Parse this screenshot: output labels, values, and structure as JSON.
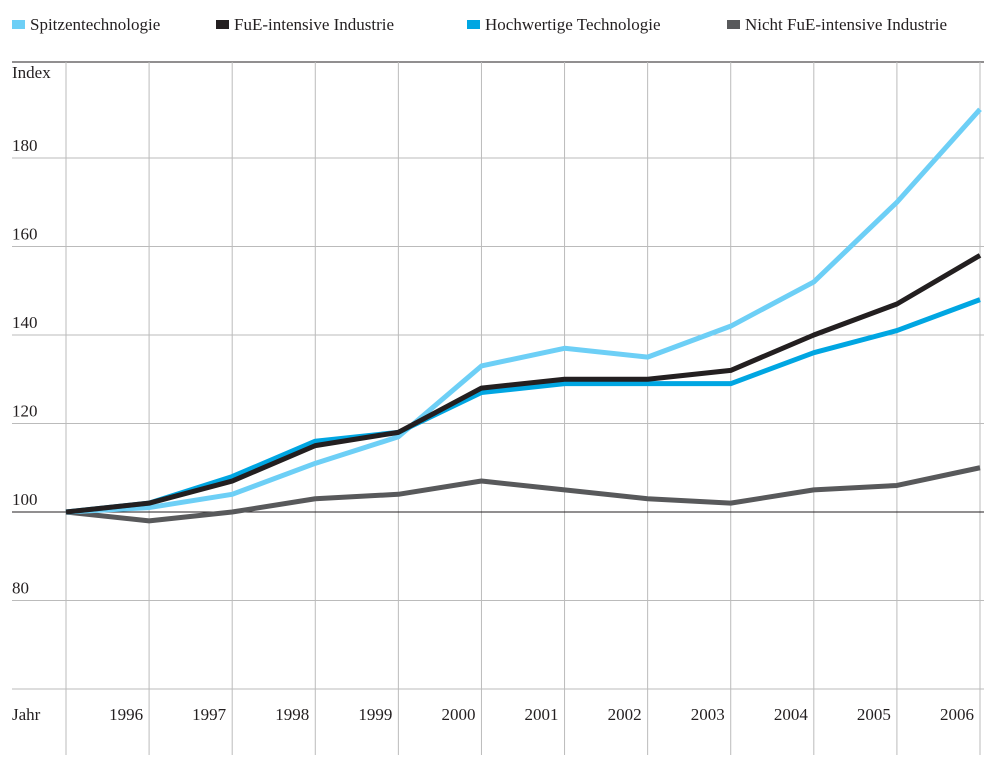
{
  "chart_data": {
    "type": "line",
    "y_label": "Index",
    "x_label": "Jahr",
    "x": [
      1995,
      1996,
      1997,
      1998,
      1999,
      2000,
      2001,
      2002,
      2003,
      2004,
      2005,
      2006
    ],
    "series": [
      {
        "name": "Spitzentechnologie",
        "color": "#6dcff6",
        "values": [
          100,
          101,
          104,
          111,
          117,
          133,
          137,
          135,
          142,
          152,
          170,
          191
        ]
      },
      {
        "name": "FuE-intensive Industrie",
        "color": "#231f20",
        "values": [
          100,
          102,
          107,
          115,
          118,
          128,
          130,
          130,
          132,
          140,
          147,
          158
        ]
      },
      {
        "name": "Hochwertige Technologie",
        "color": "#00a6e2",
        "values": [
          100,
          102,
          108,
          116,
          118,
          127,
          129,
          129,
          129,
          136,
          141,
          148
        ]
      },
      {
        "name": "Nicht FuE-intensive Industrie",
        "color": "#58595b",
        "values": [
          100,
          98,
          100,
          103,
          104,
          107,
          105,
          103,
          102,
          105,
          106,
          110
        ]
      }
    ],
    "xlim": [
      1995,
      2006
    ],
    "xticks": [
      1996,
      1997,
      1998,
      1999,
      2000,
      2001,
      2002,
      2003,
      2004,
      2005,
      2006
    ],
    "ylim": [
      60,
      200
    ],
    "yticks": [
      80,
      100,
      120,
      140,
      160,
      180
    ],
    "grid": true,
    "legend": "top"
  }
}
